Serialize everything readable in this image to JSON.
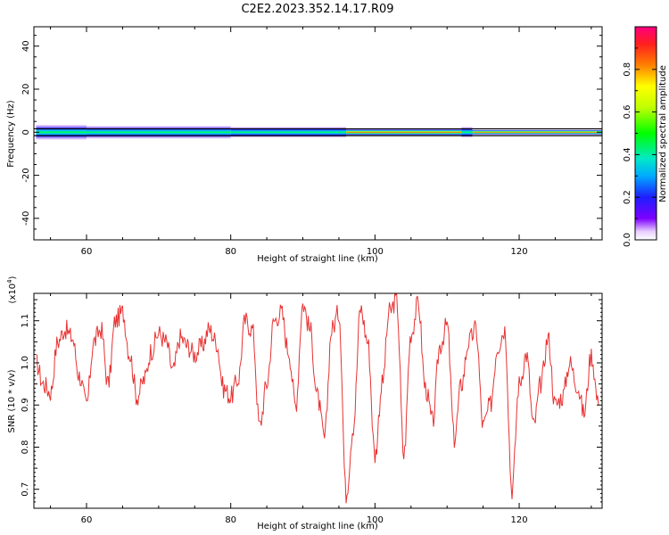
{
  "title": "C2E2.2023.352.14.17.R09",
  "chart_data": [
    {
      "type": "heatmap",
      "xlabel": "Height of straight line (km)",
      "ylabel": "Frequency (Hz)",
      "xlim": [
        52.7,
        131.5
      ],
      "ylim": [
        -50,
        49
      ],
      "xticks": [
        60,
        80,
        100,
        120
      ],
      "yticks": [
        -40,
        -20,
        0,
        20,
        40
      ],
      "colorbar": {
        "label": "Normalized spectral amplitude",
        "range": [
          0,
          1
        ],
        "ticks": [
          0.0,
          0.2,
          0.4,
          0.6,
          0.8
        ],
        "tick_labels": [
          "0.0",
          "0.2",
          "0.4",
          "0.6",
          "0.8"
        ],
        "colormap": "rainbow"
      },
      "band": {
        "center_hz": 0,
        "outer_lines_hz": [
          -1.6,
          1.6
        ],
        "segments": [
          {
            "x": [
              53,
              60
            ],
            "half_width_hz": 3.5,
            "core": 0.45
          },
          {
            "x": [
              60,
              80
            ],
            "half_width_hz": 3.0,
            "core": 0.5
          },
          {
            "x": [
              80,
              96
            ],
            "half_width_hz": 2.5,
            "core": 0.65
          },
          {
            "x": [
              96,
              112
            ],
            "half_width_hz": 1.5,
            "core": 0.85
          },
          {
            "x": [
              112,
              113.5
            ],
            "half_width_hz": 2.5,
            "core": 0.4
          },
          {
            "x": [
              113.5,
              131.5
            ],
            "half_width_hz": 1.2,
            "core": 0.92
          }
        ]
      }
    },
    {
      "type": "line",
      "xlabel": "Height of straight line (km)",
      "ylabel": "SNR (10 * v/v)",
      "y_multiplier_label": "(x10",
      "y_multiplier_exponent": "4",
      "y_multiplier_close": ")",
      "xlim": [
        52.7,
        131.5
      ],
      "ylim": [
        0.655,
        1.165
      ],
      "xticks": [
        60,
        80,
        100,
        120
      ],
      "yticks": [
        0.7,
        0.8,
        0.9,
        1.0,
        1.1
      ],
      "ytick_labels": [
        "0.7",
        "0.8",
        "0.9",
        "1.0",
        "1.1"
      ],
      "series": [
        {
          "color": "#e83232",
          "x": [
            53,
            54,
            55,
            56,
            57,
            58,
            59,
            60,
            61,
            62,
            63,
            64,
            65,
            66,
            67,
            68,
            69,
            70,
            71,
            72,
            73,
            74,
            75,
            76,
            77,
            78,
            79,
            80,
            81,
            82,
            83,
            84,
            85,
            86,
            87,
            88,
            89,
            90,
            91,
            92,
            93,
            94,
            95,
            96,
            97,
            98,
            99,
            100,
            101,
            102,
            103,
            104,
            105,
            106,
            107,
            108,
            109,
            110,
            111,
            112,
            113,
            114,
            115,
            116,
            117,
            118,
            119,
            120,
            121,
            122,
            123,
            124,
            125,
            126,
            127,
            128,
            129,
            130,
            131
          ],
          "y": [
            1.0,
            0.95,
            0.93,
            1.05,
            1.08,
            1.06,
            0.97,
            0.9,
            1.05,
            1.08,
            0.95,
            1.1,
            1.12,
            1.02,
            0.92,
            0.96,
            1.03,
            1.07,
            1.05,
            0.98,
            1.06,
            1.04,
            1.02,
            1.04,
            1.08,
            1.05,
            0.94,
            0.92,
            0.96,
            1.1,
            1.08,
            0.85,
            0.95,
            1.1,
            1.12,
            1.03,
            0.9,
            1.14,
            1.08,
            0.92,
            0.82,
            1.08,
            1.12,
            0.69,
            0.85,
            1.13,
            1.05,
            0.78,
            0.95,
            1.12,
            1.15,
            0.78,
            1.07,
            1.14,
            0.94,
            0.86,
            1.04,
            1.09,
            0.82,
            0.95,
            1.05,
            1.08,
            0.85,
            0.9,
            1.04,
            1.08,
            0.7,
            0.95,
            1.02,
            0.85,
            0.95,
            1.06,
            0.9,
            0.92,
            1.0,
            0.95,
            0.88,
            1.02,
            0.9
          ]
        }
      ]
    }
  ]
}
